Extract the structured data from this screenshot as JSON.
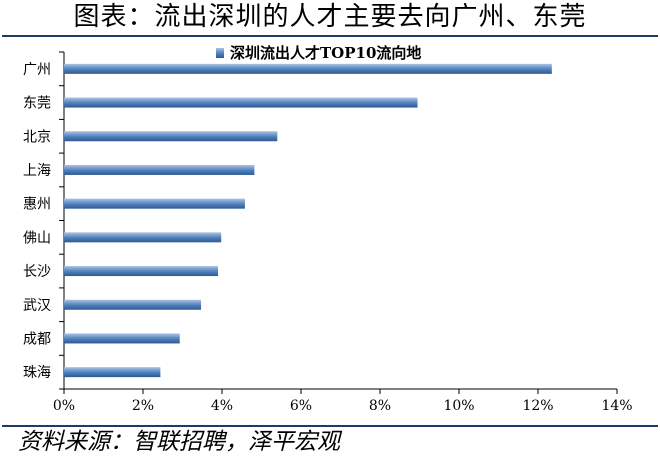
{
  "title": "图表：流出深圳的人才主要去向广州、东莞",
  "source": "资料来源：智联招聘，泽平宏观",
  "colors": {
    "bar_top": "#a9c4e4",
    "bar_mid": "#4f7fb9",
    "bar_bottom": "#2c5a94",
    "rule": "#1f3a66"
  },
  "chart_data": {
    "type": "bar",
    "orientation": "horizontal",
    "categories": [
      "广州",
      "东莞",
      "北京",
      "上海",
      "惠州",
      "佛山",
      "长沙",
      "武汉",
      "成都",
      "珠海"
    ],
    "series": [
      {
        "name": "深圳流出人才TOP10流向地",
        "values": [
          12.35,
          8.95,
          5.4,
          4.82,
          4.58,
          3.98,
          3.9,
          3.47,
          2.93,
          2.44
        ]
      }
    ],
    "xlim": [
      0,
      14
    ],
    "xticks": [
      0,
      2,
      4,
      6,
      8,
      10,
      12,
      14
    ],
    "tick_format": "percent",
    "legend_position": "top-center",
    "grid": false
  }
}
